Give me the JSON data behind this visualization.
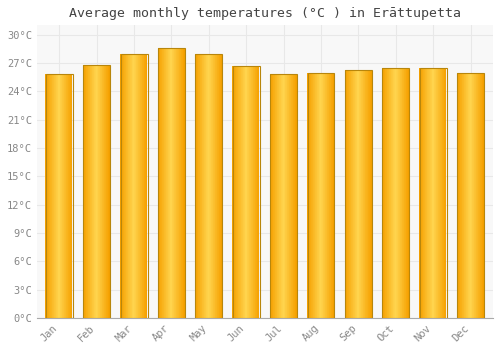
{
  "months": [
    "Jan",
    "Feb",
    "Mar",
    "Apr",
    "May",
    "Jun",
    "Jul",
    "Aug",
    "Sep",
    "Oct",
    "Nov",
    "Dec"
  ],
  "values": [
    25.8,
    26.8,
    28.0,
    28.6,
    28.0,
    26.7,
    25.8,
    25.9,
    26.3,
    26.5,
    26.5,
    25.9
  ],
  "bar_color_center": "#FFD54F",
  "bar_color_edge": "#F5A000",
  "bar_outline_color": "#B8860B",
  "background_color": "#FFFFFF",
  "plot_bg_color": "#F8F8F8",
  "title": "Average monthly temperatures (°C ) in Erāttupetta",
  "ylim": [
    0,
    31
  ],
  "yticks": [
    0,
    3,
    6,
    9,
    12,
    15,
    18,
    21,
    24,
    27,
    30
  ],
  "title_fontsize": 9.5,
  "tick_fontsize": 7.5,
  "grid_color": "#E8E8E8",
  "bar_width": 0.72
}
